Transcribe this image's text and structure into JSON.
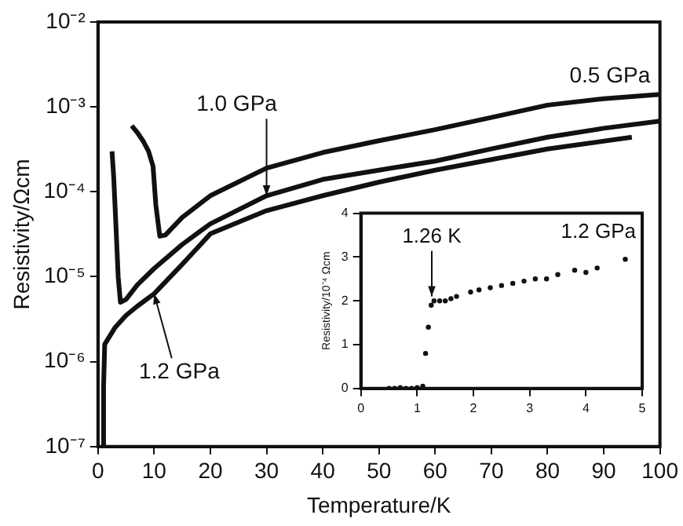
{
  "chart_data": [
    {
      "type": "line",
      "xlabel": "Temperature/K",
      "ylabel": "Resistivity/Ωcm",
      "log": "y",
      "marker": "none",
      "line_style": "solid",
      "legend": false,
      "grid": false,
      "xlim": [
        0,
        100
      ],
      "xticks": [
        0,
        10,
        20,
        30,
        40,
        50,
        60,
        70,
        80,
        90,
        100
      ],
      "ylim": [
        1e-07,
        0.01
      ],
      "yticks": [
        {
          "value": 1e-07,
          "label": "10⁻⁷"
        },
        {
          "value": 1e-06,
          "label": "10⁻⁶"
        },
        {
          "value": 1e-05,
          "label": "10⁻⁵"
        },
        {
          "value": 0.0001,
          "label": "10⁻⁴"
        },
        {
          "value": 0.001,
          "label": "10⁻³"
        },
        {
          "value": 0.01,
          "label": "10⁻²"
        }
      ],
      "series": [
        {
          "color": "#111111",
          "x": [
            6,
            7,
            8,
            9,
            9.8,
            10.3,
            11,
            12,
            15,
            20,
            30,
            40,
            50,
            60,
            70,
            80,
            90,
            100
          ],
          "values": [
            0.0006,
            0.0005,
            0.0004,
            0.0003,
            0.0002,
            7e-05,
            3e-05,
            3.1e-05,
            5e-05,
            9e-05,
            0.00019,
            0.00029,
            0.0004,
            0.00054,
            0.00075,
            0.00105,
            0.00125,
            0.0014
          ]
        },
        {
          "color": "#111111",
          "x": [
            2.5,
            2.8,
            3.2,
            3.6,
            4,
            5,
            7,
            10,
            15,
            20,
            30,
            40,
            50,
            60,
            70,
            80,
            90,
            100
          ],
          "values": [
            0.0003,
            0.00015,
            4e-05,
            1e-05,
            5e-06,
            5.4e-06,
            8e-06,
            1.25e-05,
            2.4e-05,
            4.2e-05,
            9e-05,
            0.00014,
            0.00018,
            0.00023,
            0.00032,
            0.00044,
            0.00056,
            0.00068
          ]
        },
        {
          "color": "#111111",
          "x": [
            0.8,
            1,
            1.2,
            3,
            5,
            7,
            10,
            15,
            20,
            30,
            40,
            50,
            60,
            70,
            80,
            95
          ],
          "values": [
            1e-07,
            5e-07,
            1.6e-06,
            2.5e-06,
            3.5e-06,
            4.5e-06,
            6.3e-06,
            1.4e-05,
            3.2e-05,
            6e-05,
            9e-05,
            0.00013,
            0.00018,
            0.00024,
            0.00032,
            0.00044
          ]
        }
      ],
      "annotations": [
        {
          "text": "1.0 GPa",
          "x": 30,
          "y": 9e-05
        },
        {
          "text": "0.5 GPa",
          "x": 95,
          "y": 0.00125
        },
        {
          "text": "1.2 GPa",
          "x": 10,
          "y": 6.3e-06
        }
      ]
    },
    {
      "type": "scatter",
      "ylabel": "Resistivity/10⁻⁴ Ωcm",
      "marker": "circle",
      "legend": false,
      "grid": false,
      "xlim": [
        0,
        5
      ],
      "xticks": [
        0,
        1,
        2,
        3,
        4,
        5
      ],
      "ylim": [
        0,
        4
      ],
      "yticks": [
        0,
        1,
        2,
        3,
        4
      ],
      "series": [
        {
          "color": "#111111",
          "x": [
            0.5,
            0.6,
            0.7,
            0.8,
            0.9,
            1.0,
            1.1,
            1.15,
            1.2,
            1.25,
            1.3,
            1.4,
            1.5,
            1.6,
            1.7,
            1.95,
            2.1,
            2.3,
            2.5,
            2.7,
            2.9,
            3.1,
            3.3,
            3.5,
            3.8,
            4.0,
            4.2,
            4.7
          ],
          "values": [
            0,
            0,
            0.02,
            0,
            0,
            0.02,
            0.05,
            0.8,
            1.4,
            1.9,
            2.0,
            2.0,
            2.0,
            2.05,
            2.1,
            2.2,
            2.25,
            2.3,
            2.35,
            2.4,
            2.45,
            2.5,
            2.5,
            2.6,
            2.7,
            2.65,
            2.75,
            2.95
          ]
        }
      ],
      "annotations": [
        {
          "text": "1.26 K",
          "x": 1.26,
          "y": 2.1
        },
        "1.2 GPa"
      ]
    }
  ]
}
